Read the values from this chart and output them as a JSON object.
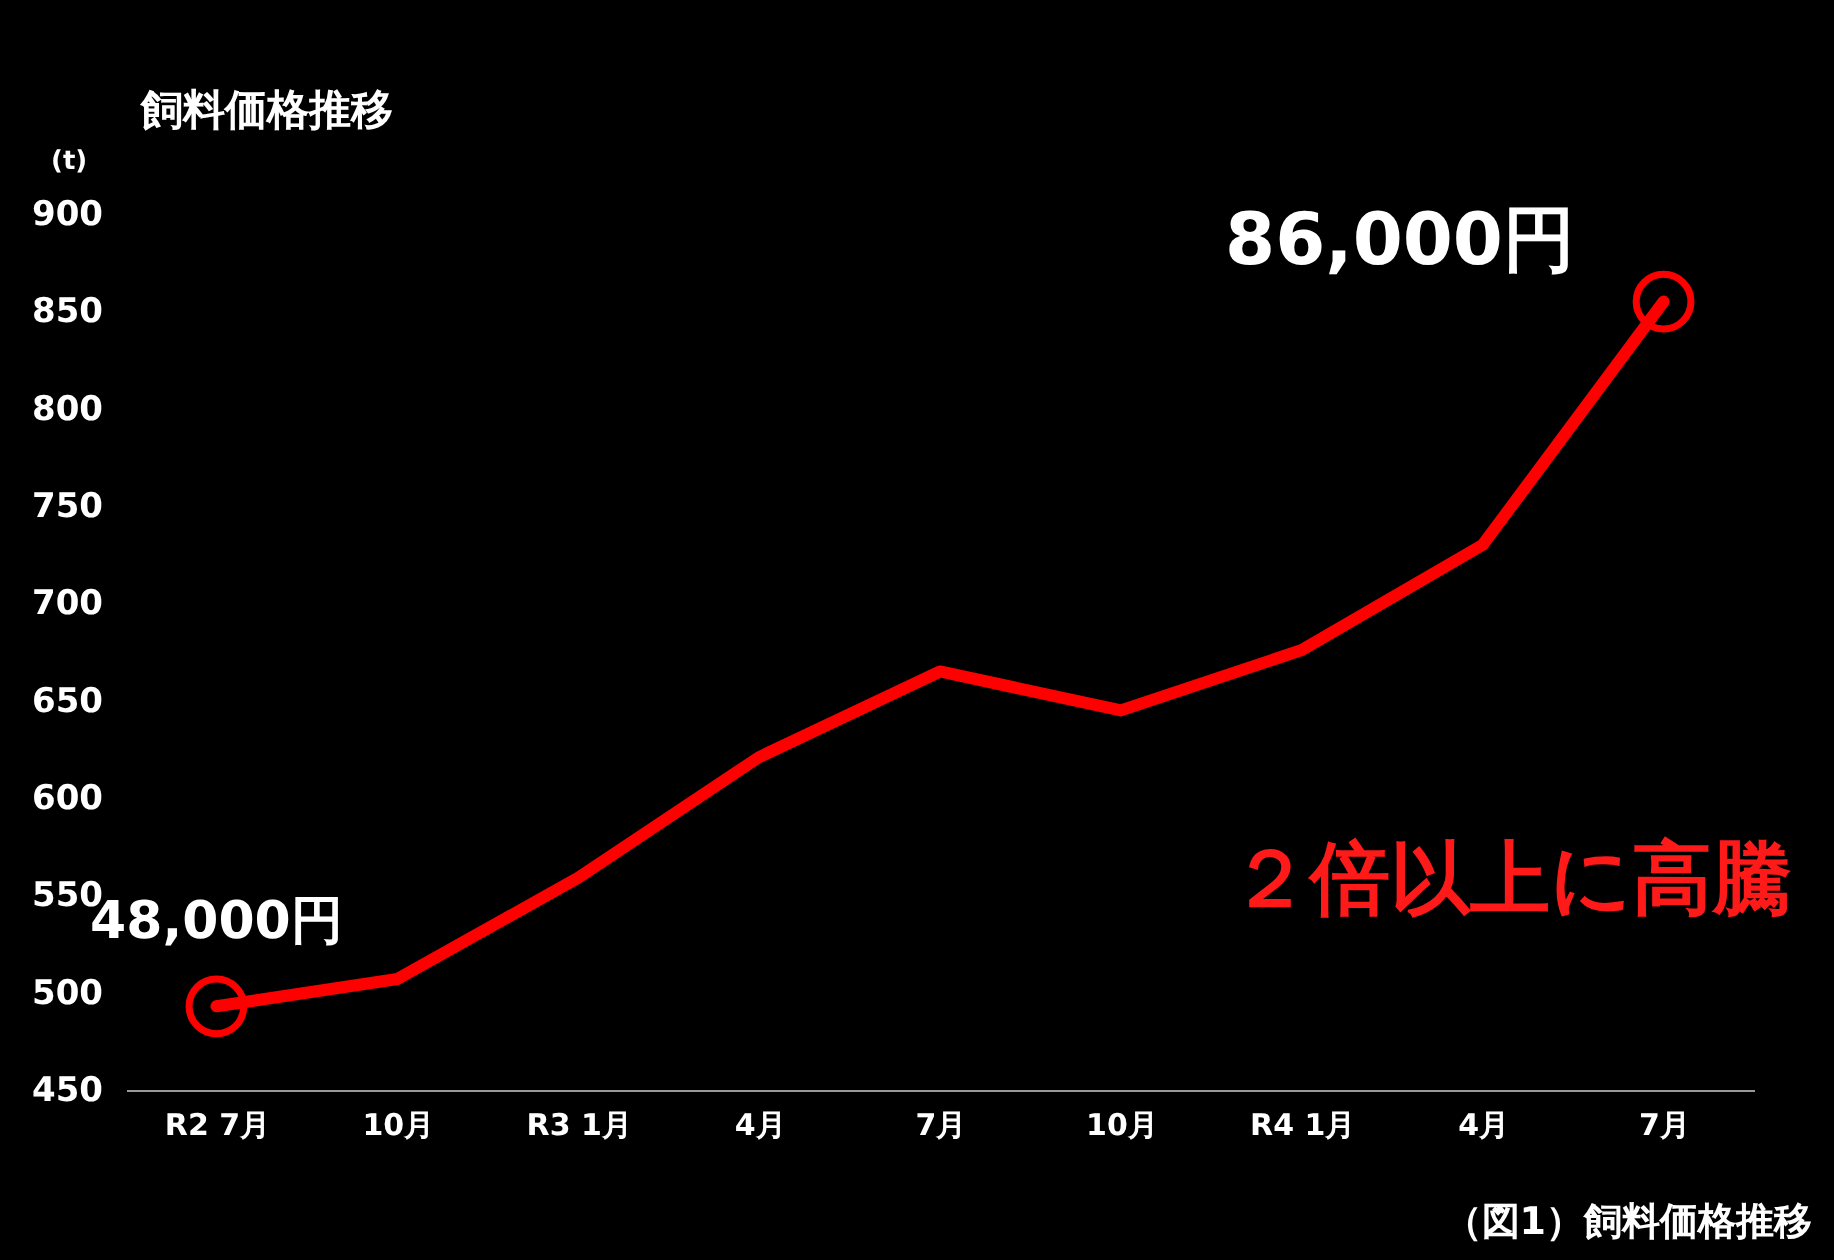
{
  "chart_data": {
    "type": "line",
    "title": "飼料価格推移",
    "ylabel": "(t)",
    "categories": [
      "R2 7月",
      "10月",
      "R3 1月",
      "4月",
      "7月",
      "10月",
      "R4 1月",
      "4月",
      "7月"
    ],
    "series": [
      {
        "color": "#ff0000",
        "values": [
          493,
          507,
          559,
          621,
          665,
          645,
          676,
          730,
          855
        ],
        "marker": "none"
      },
      {
        "type": "scatter",
        "color": "#ff0000",
        "values": [
          493,
          null,
          null,
          null,
          null,
          null,
          null,
          null,
          855
        ],
        "marker": "circle"
      }
    ],
    "ylim": [
      450,
      900
    ],
    "yticks": [
      450,
      500,
      550,
      600,
      650,
      700,
      750,
      800,
      850,
      900
    ],
    "grid": false,
    "annotations": [
      {
        "text": "48,000円",
        "x": "R2 7月",
        "y": 493
      },
      "86,000円",
      "２倍以上に高騰",
      "（図1）飼料価格推移"
    ]
  }
}
